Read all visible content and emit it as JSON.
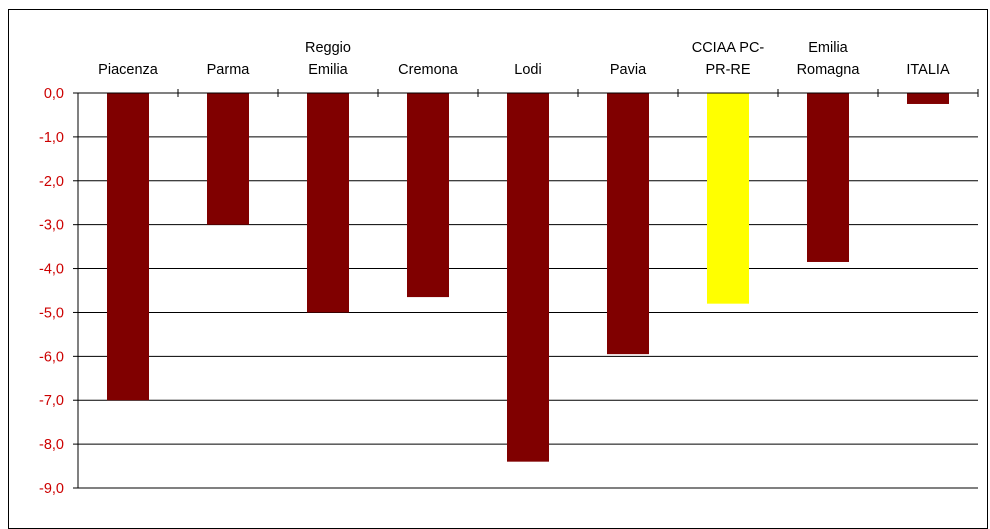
{
  "chart_data": {
    "type": "bar",
    "categories": [
      [
        "Piacenza"
      ],
      [
        "Parma"
      ],
      [
        "Reggio",
        "Emilia"
      ],
      [
        "Cremona"
      ],
      [
        "Lodi"
      ],
      [
        "Pavia"
      ],
      [
        "CCIAA PC-",
        "PR-RE"
      ],
      [
        "Emilia",
        "Romagna"
      ],
      [
        "ITALIA"
      ]
    ],
    "values": [
      -7.0,
      -3.0,
      -5.0,
      -4.65,
      -8.4,
      -5.95,
      -4.8,
      -3.85,
      -0.25
    ],
    "colors": [
      "#800000",
      "#800000",
      "#800000",
      "#800000",
      "#800000",
      "#800000",
      "#ffff00",
      "#800000",
      "#800000"
    ],
    "ylim": [
      -9,
      0
    ],
    "yticks": [
      "0,0",
      "-1,0",
      "-2,0",
      "-3,0",
      "-4,0",
      "-5,0",
      "-6,0",
      "-7,0",
      "-8,0",
      "-9,0"
    ],
    "grid": true,
    "tick_color": "#cc0000",
    "bar_color": "#800000",
    "highlight_color": "#ffff00"
  }
}
